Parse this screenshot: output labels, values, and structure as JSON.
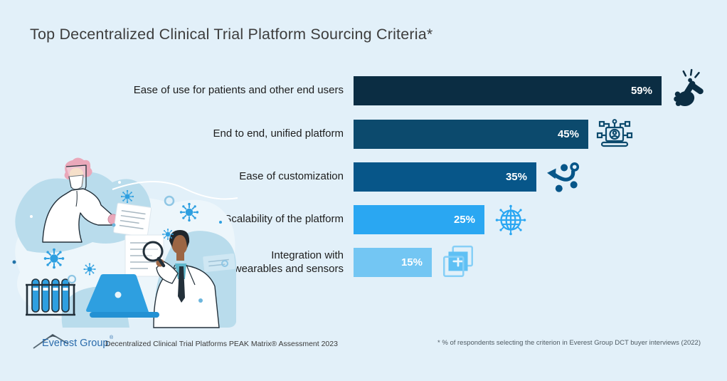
{
  "title": "Top Decentralized Clinical Trial Platform Sourcing Criteria*",
  "chart_data": {
    "type": "bar",
    "orientation": "horizontal",
    "unit": "%",
    "xlim": [
      0,
      62
    ],
    "grid": false,
    "legend": "none",
    "categories": [
      "Ease of use for patients and other end users",
      "End to end, unified platform",
      "Ease of customization",
      "Scalability of the platform",
      "Integration with\nwearables and sensors"
    ],
    "values": [
      59,
      45,
      35,
      25,
      15
    ],
    "value_labels": [
      "59%",
      "45%",
      "35%",
      "25%",
      "15%"
    ],
    "bar_colors": [
      "#0b2d43",
      "#0c4a6d",
      "#075689",
      "#2aa7f2",
      "#73c6f3"
    ],
    "icons": [
      "snap-fingers-icon",
      "unified-platform-laptop-icon",
      "customization-path-icon",
      "globe-network-icon",
      "integration-layers-icon"
    ],
    "title": "Top Decentralized Clinical Trial Platform Sourcing Criteria*",
    "xlabel": "",
    "ylabel": ""
  },
  "illustration": {
    "description": "Two clinicians in white lab coats: one with face shield and mask handing documents, one examining a blue laptop with a magnifying glass, surrounded by virus particles and a test-tube rack"
  },
  "footer": {
    "logo_text": "Everest Group",
    "logo_reg": "®",
    "source_text": "Decentralized Clinical Trial Platforms PEAK Matrix® Assessment 2023",
    "footnote": "* % of respondents selecting the criterion in Everest Group DCT buyer interviews (2022)"
  },
  "colors": {
    "background": "#e2f0f9",
    "title_text": "#3d3d3d",
    "label_text": "#1d1d1d",
    "bar_value_text": "#ffffff",
    "logo_blue": "#2b6cac",
    "illustration_blue": "#2e9fe0",
    "illustration_blob": "#b9dcec"
  }
}
